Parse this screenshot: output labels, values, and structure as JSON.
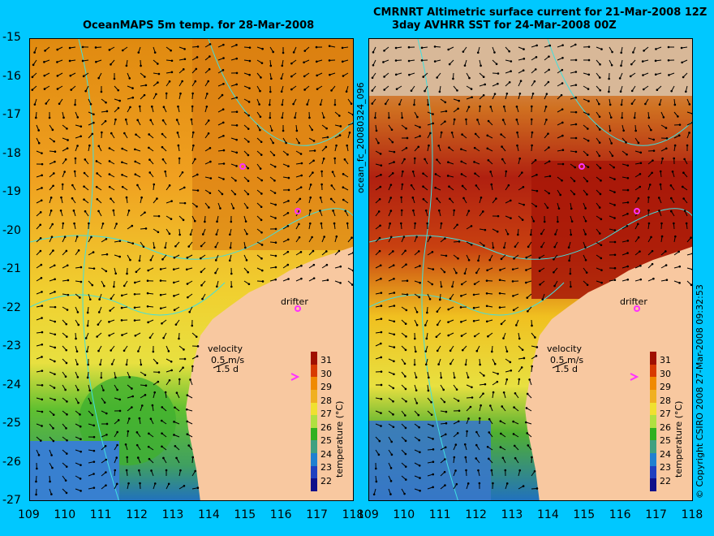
{
  "titles": {
    "left": "OceanMAPS 5m temp. for 28-Mar-2008",
    "right_line1": "CMRNRT Altimetric surface current for 21-Mar-2008 12Z",
    "right_line2": "3day AVHRR SST for 24-Mar-2008 00Z"
  },
  "side_labels": {
    "file_id": "ocean_fc_20080324_096",
    "copyright": "© Copyright CSIRO 2008  27-Mar-2008 09:32:53"
  },
  "map_labels": {
    "drifter": "drifter",
    "velocity": "velocity",
    "speed": "0.5 m/s",
    "days": "1.5 d"
  },
  "colorbar": {
    "label": "temperature (°C)",
    "ticks": [
      "31",
      "30",
      "29",
      "28",
      "27",
      "26",
      "25",
      "24",
      "23",
      "22"
    ],
    "colors": [
      "#a01000",
      "#d83a00",
      "#f08a00",
      "#f0b020",
      "#f0e030",
      "#b0e040",
      "#30b020",
      "#40a080",
      "#2080d0",
      "#2040c0",
      "#10108a"
    ]
  },
  "axes": {
    "lat_ticks": [
      "-15",
      "-16",
      "-17",
      "-18",
      "-19",
      "-20",
      "-21",
      "-22",
      "-23",
      "-24",
      "-25",
      "-26",
      "-27"
    ],
    "lon_ticks": [
      "109",
      "110",
      "111",
      "112",
      "113",
      "114",
      "115",
      "116",
      "117",
      "118"
    ]
  },
  "colors": {
    "background": "#00c8ff",
    "land": "#f8c8a0",
    "contour": "#40e0e0",
    "drifter_marker": "#ff30ff"
  }
}
